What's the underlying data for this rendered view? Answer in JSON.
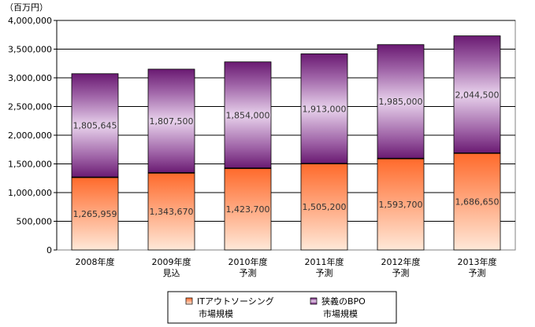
{
  "chart_data": {
    "type": "bar",
    "stacked": true,
    "unit_label": "（百万円）",
    "categories": [
      [
        "2008年度"
      ],
      [
        "2009年度",
        "見込"
      ],
      [
        "2010年度",
        "予測"
      ],
      [
        "2011年度",
        "予測"
      ],
      [
        "2012年度",
        "予測"
      ],
      [
        "2013年度",
        "予測"
      ]
    ],
    "series": [
      {
        "name": [
          "ITアウトソーシング",
          "市場規模"
        ],
        "values": [
          1265959,
          1343670,
          1423700,
          1505200,
          1593700,
          1686650
        ],
        "value_labels": [
          "1,265,959",
          "1,343,670",
          "1,423,700",
          "1,505,200",
          "1,593,700",
          "1,686,650"
        ],
        "color_top": "#ff6a2b",
        "color_bottom": "#ffe8d8"
      },
      {
        "name": [
          "狭義のBPO",
          "市場規模"
        ],
        "values": [
          1805645,
          1807500,
          1854000,
          1913000,
          1985000,
          2044500
        ],
        "value_labels": [
          "1,805,645",
          "1,807,500",
          "1,854,000",
          "1,913,000",
          "1,985,000",
          "2,044,500"
        ],
        "color_top": "#6a1a72",
        "color_mid": "#e8d2ec",
        "color_bottom": "#6a1a72"
      }
    ],
    "y_ticks": [
      {
        "value": 0,
        "label": "0"
      },
      {
        "value": 500000,
        "label": "500,000"
      },
      {
        "value": 1000000,
        "label": "1,000,000"
      },
      {
        "value": 1500000,
        "label": "1,500,000"
      },
      {
        "value": 2000000,
        "label": "2,000,000"
      },
      {
        "value": 2500000,
        "label": "2,500,000"
      },
      {
        "value": 3000000,
        "label": "3,000,000"
      },
      {
        "value": 3500000,
        "label": "3,500,000"
      },
      {
        "value": 4000000,
        "label": "4,000,000"
      }
    ],
    "ylim": [
      0,
      4000000
    ],
    "grid": true,
    "legend_position": "bottom"
  }
}
